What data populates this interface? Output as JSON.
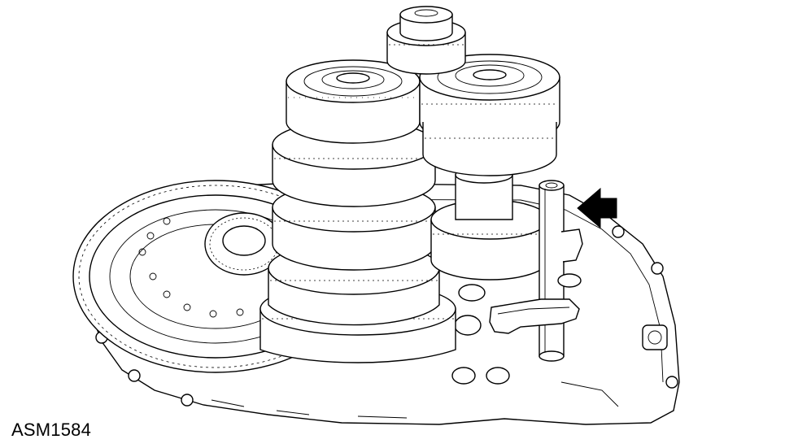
{
  "figure_id": "ASM1584",
  "callout_arrow": {
    "direction": "left",
    "color": "#000000"
  }
}
